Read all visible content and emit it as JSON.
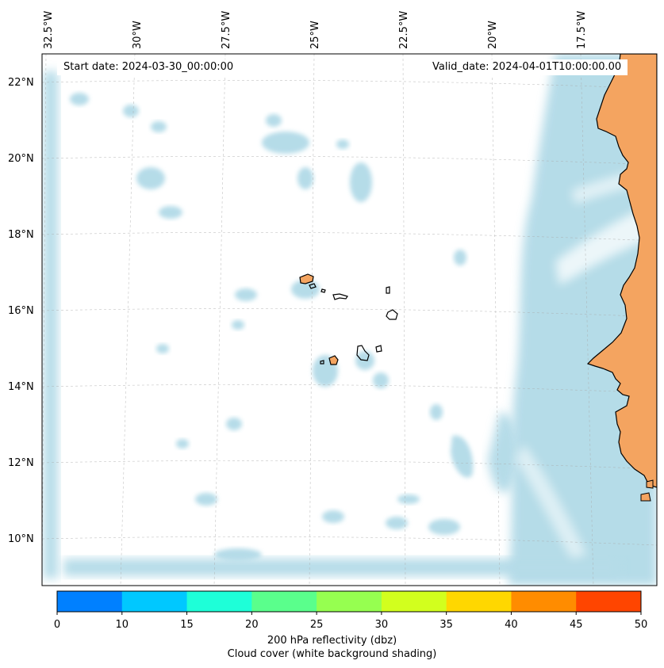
{
  "map": {
    "start_date_label": "Start date: 2024-03-30_00:00:00",
    "valid_date_label": "Valid_date: 2024-04-01T10:00:00.00",
    "lon_labels": [
      "32.5°W",
      "30°W",
      "27.5°W",
      "25°W",
      "22.5°W",
      "20°W",
      "17.5°W"
    ],
    "lat_labels": [
      "22°N",
      "20°N",
      "18°N",
      "16°N",
      "14°N",
      "12°N",
      "10°N"
    ],
    "land_color": "#f4a460",
    "cloud_color": "#add8e6",
    "ocean_color": "#ffffff"
  },
  "colorbar": {
    "ticks": [
      "0",
      "10",
      "15",
      "20",
      "25",
      "30",
      "35",
      "40",
      "45",
      "50"
    ],
    "colors": [
      "#0080ff",
      "#00c8ff",
      "#1effd8",
      "#5aff8c",
      "#96ff50",
      "#d2ff1e",
      "#ffd700",
      "#ff8c00",
      "#ff4500"
    ],
    "label_line1": "200 hPa reflectivity (dbz)",
    "label_line2": "Cloud cover (white background shading)"
  }
}
